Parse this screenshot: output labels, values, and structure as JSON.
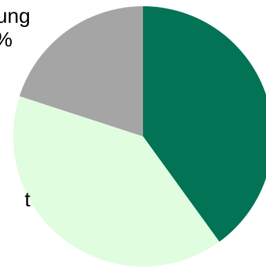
{
  "chart_data": {
    "type": "pie",
    "start_angle_deg": 0,
    "direction": "clockwise",
    "slices": [
      {
        "value": 40,
        "color": "#037356",
        "label": ""
      },
      {
        "value": 40,
        "color": "#e0fde0",
        "label": "t"
      },
      {
        "value": 20,
        "color": "#a5a5a5",
        "label": "ung\n%"
      }
    ]
  }
}
